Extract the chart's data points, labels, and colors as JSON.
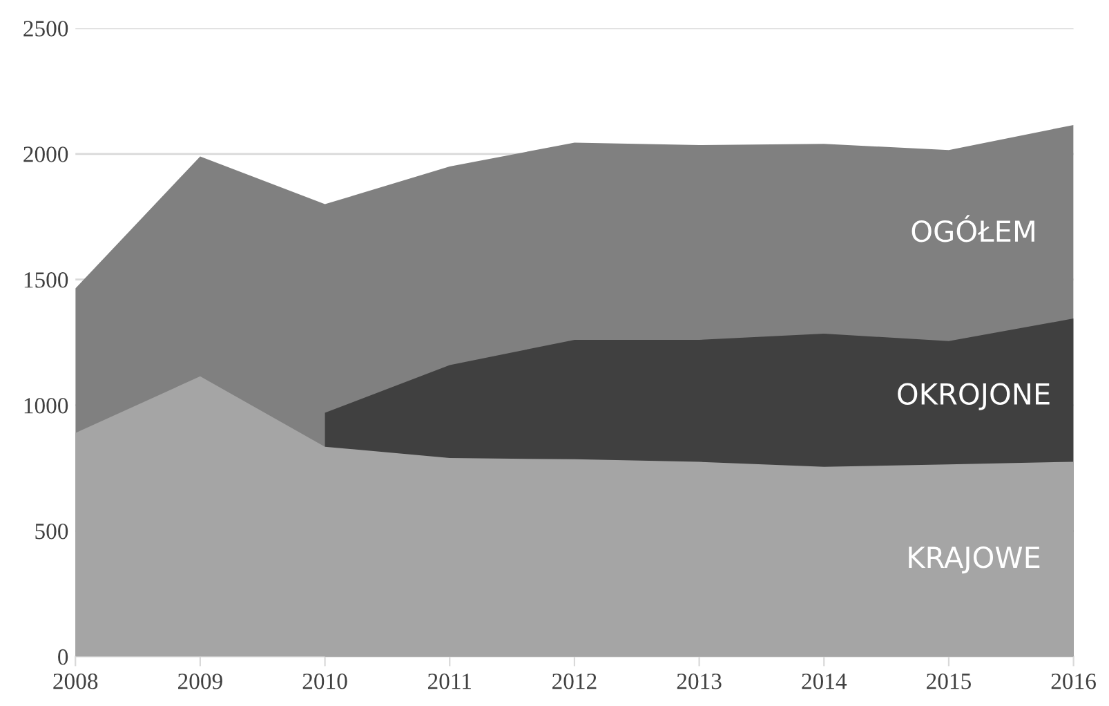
{
  "chart_data": {
    "type": "area",
    "x": [
      2008,
      2009,
      2010,
      2011,
      2012,
      2013,
      2014,
      2015,
      2016
    ],
    "series": [
      {
        "name": "OGÓŁEM",
        "color": "#808080",
        "values": [
          1465,
          1990,
          1800,
          1950,
          2045,
          2035,
          2040,
          2015,
          2115
        ]
      },
      {
        "name": "OKROJONE",
        "color": "#404040",
        "values": [
          null,
          null,
          970,
          1160,
          1260,
          1260,
          1285,
          1255,
          1345
        ]
      },
      {
        "name": "KRAJOWE",
        "color": "#a5a5a5",
        "values": [
          890,
          1115,
          835,
          790,
          785,
          775,
          755,
          765,
          775
        ]
      }
    ],
    "xlim": [
      2008,
      2016
    ],
    "xticks": [
      2008,
      2009,
      2010,
      2011,
      2012,
      2013,
      2014,
      2015,
      2016
    ],
    "ylim": [
      0,
      2500
    ],
    "yticks": [
      0,
      500,
      1000,
      1500,
      2000,
      2500
    ],
    "grid": "y",
    "legend": false
  }
}
